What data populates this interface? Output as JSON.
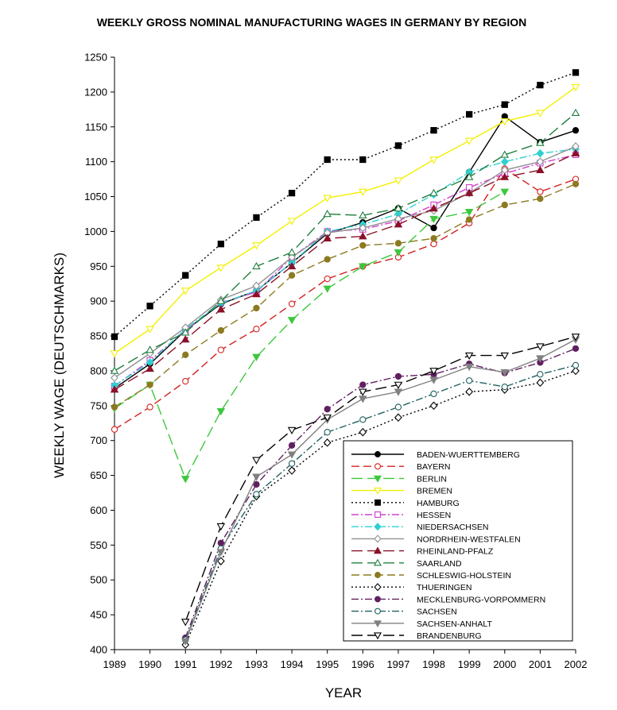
{
  "chart_data": {
    "type": "line",
    "title": "WEEKLY GROSS NOMINAL MANUFACTURING WAGES IN GERMANY BY REGION",
    "xlabel": "YEAR",
    "ylabel": "WEEKLY WAGE (DEUTSCHMARKS)",
    "xlim": [
      1989,
      2002
    ],
    "ylim": [
      400,
      1250
    ],
    "x_ticks": [
      "1989",
      "1990",
      "1991",
      "1992",
      "1993",
      "1994",
      "1995",
      "1996",
      "1997",
      "1998",
      "1999",
      "2000",
      "2001",
      "2002"
    ],
    "y_ticks": [
      "400",
      "450",
      "500",
      "550",
      "600",
      "650",
      "700",
      "750",
      "800",
      "850",
      "900",
      "950",
      "1000",
      "1050",
      "1100",
      "1150",
      "1200",
      "1250"
    ],
    "grid": false,
    "legend_position": "bottom-right",
    "x": [
      1989,
      1990,
      1991,
      1992,
      1993,
      1994,
      1995,
      1996,
      1997,
      1998,
      1999,
      2000,
      2001,
      2002
    ],
    "series": [
      {
        "name": "BADEN-WUERTTEMBERG",
        "color": "#000000",
        "dash": "solid",
        "marker": "circle-filled",
        "values": [
          775,
          810,
          858,
          896,
          915,
          955,
          997,
          1013,
          1033,
          1005,
          1085,
          1165,
          1128,
          1145
        ]
      },
      {
        "name": "BAYERN",
        "color": "#d42020",
        "dash": "dash",
        "marker": "circle-open",
        "values": [
          716,
          748,
          785,
          830,
          860,
          896,
          932,
          950,
          963,
          982,
          1012,
          1090,
          1057,
          1075
        ]
      },
      {
        "name": "BERLIN",
        "color": "#3cc83c",
        "dash": "longdash",
        "marker": "triangle-down-filled",
        "values": [
          746,
          780,
          645,
          742,
          820,
          873,
          918,
          950,
          970,
          1018,
          1028,
          1057,
          null,
          null
        ]
      },
      {
        "name": "BREMEN",
        "color": "#f2f000",
        "dash": "solid",
        "marker": "triangle-down-open",
        "values": [
          825,
          860,
          915,
          948,
          980,
          1015,
          1048,
          1057,
          1073,
          1103,
          1130,
          1158,
          1170,
          1207
        ]
      },
      {
        "name": "HAMBURG",
        "color": "#000000",
        "dash": "dot",
        "marker": "square-filled",
        "values": [
          849,
          893,
          937,
          982,
          1020,
          1055,
          1103,
          1103,
          1123,
          1145,
          1168,
          1182,
          1210,
          1228
        ]
      },
      {
        "name": "HESSEN",
        "color": "#d040d0",
        "dash": "dashdot",
        "marker": "square-open",
        "values": [
          778,
          815,
          858,
          898,
          913,
          963,
          1000,
          1003,
          1015,
          1038,
          1063,
          1083,
          1098,
          1110
        ]
      },
      {
        "name": "NIEDERSACHSEN",
        "color": "#30d0d0",
        "dash": "dashdot",
        "marker": "diamond-filled",
        "values": [
          779,
          812,
          860,
          897,
          915,
          955,
          1000,
          1010,
          1025,
          1053,
          1085,
          1100,
          1112,
          1118
        ]
      },
      {
        "name": "NORDRHEIN-WESTFALEN",
        "color": "#909090",
        "dash": "solid",
        "marker": "diamond-open",
        "values": [
          790,
          825,
          862,
          902,
          922,
          963,
          998,
          1005,
          1018,
          1030,
          1055,
          1088,
          1100,
          1122
        ]
      },
      {
        "name": "RHEINLAND-PFALZ",
        "color": "#8a1028",
        "dash": "longdash",
        "marker": "triangle-up-filled",
        "values": [
          773,
          803,
          845,
          888,
          910,
          950,
          990,
          993,
          1010,
          1033,
          1055,
          1078,
          1088,
          1112
        ]
      },
      {
        "name": "SAARLAND",
        "color": "#208040",
        "dash": "longdash",
        "marker": "triangle-up-open",
        "values": [
          800,
          830,
          855,
          900,
          950,
          970,
          1025,
          1023,
          1033,
          1055,
          1078,
          1110,
          1127,
          1170
        ]
      },
      {
        "name": "SCHLESWIG-HOLSTEIN",
        "color": "#8c7a20",
        "dash": "dash",
        "marker": "circle-filled",
        "values": [
          748,
          780,
          823,
          858,
          890,
          937,
          960,
          980,
          983,
          990,
          1017,
          1038,
          1047,
          1068
        ]
      },
      {
        "name": "THUERINGEN",
        "color": "#000000",
        "dash": "dot",
        "marker": "diamond-open",
        "values": [
          null,
          null,
          407,
          527,
          620,
          657,
          697,
          712,
          733,
          750,
          770,
          773,
          783,
          800
        ]
      },
      {
        "name": "MECKLENBURG-VORPOMMERN",
        "color": "#602060",
        "dash": "dashdot",
        "marker": "circle-filled",
        "values": [
          null,
          null,
          417,
          553,
          637,
          693,
          745,
          780,
          792,
          795,
          810,
          797,
          812,
          832
        ]
      },
      {
        "name": "SACHSEN",
        "color": "#206060",
        "dash": "dashdot",
        "marker": "circle-open",
        "values": [
          null,
          null,
          414,
          545,
          623,
          667,
          712,
          730,
          748,
          767,
          786,
          777,
          795,
          808
        ]
      },
      {
        "name": "SACHSEN-ANHALT",
        "color": "#808080",
        "dash": "solid",
        "marker": "triangle-down-filled",
        "values": [
          null,
          null,
          412,
          540,
          648,
          680,
          730,
          760,
          770,
          787,
          806,
          798,
          818,
          845
        ]
      },
      {
        "name": "BRANDENBURG",
        "color": "#000000",
        "dash": "longdash",
        "marker": "triangle-down-open",
        "values": [
          null,
          null,
          440,
          577,
          672,
          715,
          733,
          770,
          780,
          800,
          822,
          822,
          835,
          849
        ]
      }
    ]
  }
}
